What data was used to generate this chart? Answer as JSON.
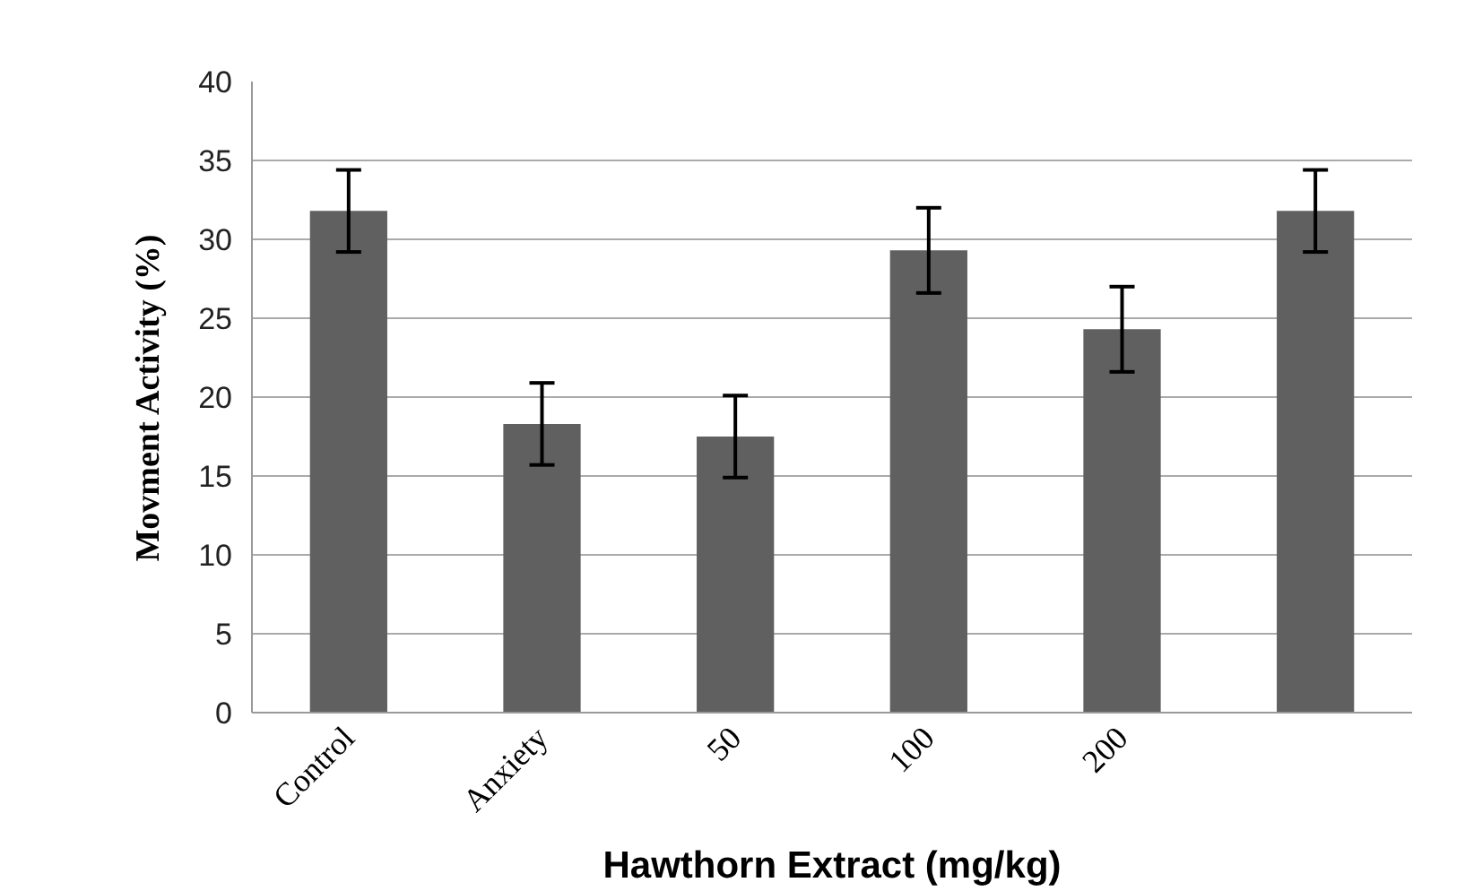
{
  "chart_data": {
    "type": "bar",
    "xlabel": "Hawthorn Extract (mg/kg)",
    "ylabel": "Movment Activity (%)",
    "categories": [
      "Control",
      "Anxiety",
      "50",
      "100",
      "200",
      null
    ],
    "values": [
      31.8,
      18.3,
      17.5,
      29.3,
      24.3,
      31.8
    ],
    "errors": [
      2.6,
      2.6,
      2.6,
      2.7,
      2.7,
      2.6
    ],
    "color": "#606060",
    "ylim": [
      0,
      40
    ],
    "yticks": [
      0,
      5,
      10,
      15,
      20,
      25,
      30,
      35,
      40
    ],
    "grid": "y"
  }
}
